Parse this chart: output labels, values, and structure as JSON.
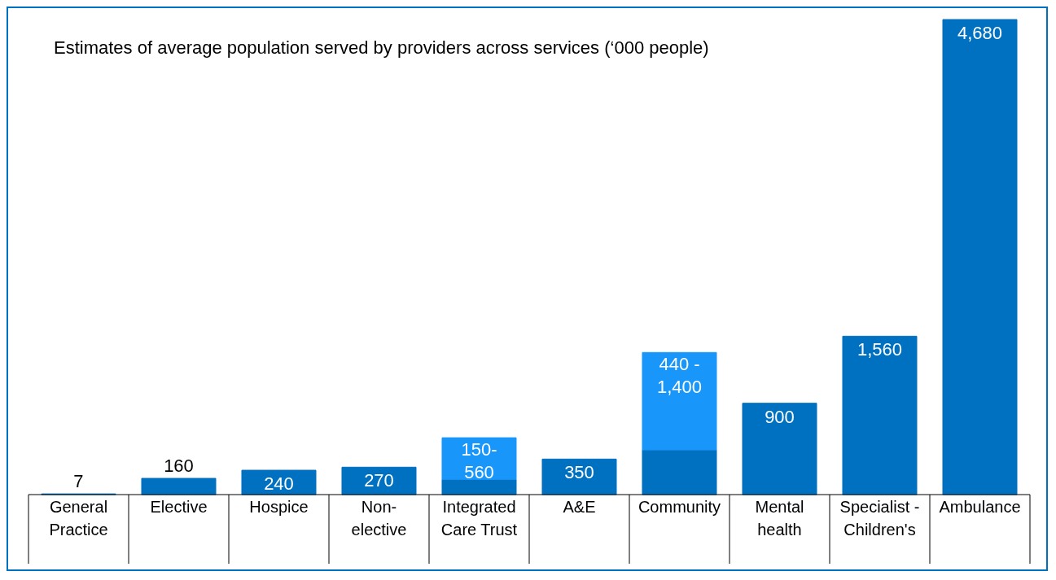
{
  "chart_data": {
    "type": "bar",
    "title": "Estimates of average population served by providers across services (‘000 people)",
    "categories": [
      "General Practice",
      "Elective",
      "Hospice",
      "Non-elective",
      "Integrated Care Trust",
      "A&E",
      "Community",
      "Mental health",
      "Specialist - Children's",
      "Ambulance"
    ],
    "stacked": true,
    "series": [
      {
        "color": "#0070c0",
        "values": [
          7,
          160,
          240,
          270,
          150,
          350,
          440,
          900,
          1560,
          4680
        ],
        "value_labels": [
          "7",
          "160",
          "240",
          "270",
          null,
          "350",
          null,
          "900",
          "1,560",
          "4,680"
        ]
      },
      {
        "color": "#1996fa",
        "values": [
          null,
          null,
          null,
          null,
          410,
          null,
          960,
          null,
          null,
          null
        ]
      }
    ],
    "annotations": [
      {
        "text": "150-560",
        "x": "Integrated Care Trust",
        "y": 560
      },
      {
        "text": "440 - 1,400",
        "x": "Community",
        "y": 1400
      }
    ],
    "grid": false,
    "legend": false
  }
}
